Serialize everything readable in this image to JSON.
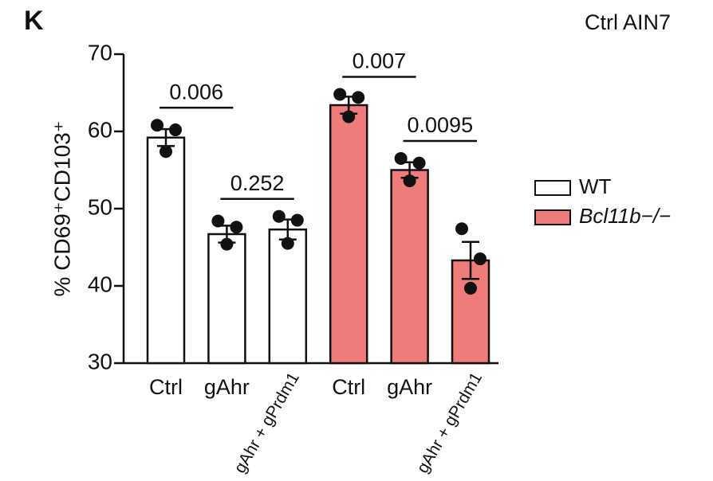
{
  "chart_data": {
    "type": "bar",
    "panel_label": "K",
    "corner_text": "Ctrl  AIN7",
    "y_label": "% CD69⁺CD103⁺",
    "categories": [
      "Ctrl",
      "gAhr",
      "gAhr + gPrdm1"
    ],
    "ylim": [
      30,
      70
    ],
    "yticks": [
      30,
      40,
      50,
      60,
      70
    ],
    "legend": "right",
    "series": [
      {
        "name": "WT",
        "color": "#ffffff",
        "values": [
          59.2,
          46.7,
          47.3
        ],
        "errors": [
          1.1,
          1.1,
          1.3
        ],
        "points": [
          [
            60.8,
            60.2,
            57.4
          ],
          [
            48.4,
            47.6,
            45.4
          ],
          [
            49.0,
            48.5,
            45.5
          ]
        ],
        "comparisons": [
          "0.006",
          "0.252"
        ]
      },
      {
        "name": "Bcl11b−/−",
        "color": "#f07b7b",
        "values": [
          63.4,
          55.0,
          43.3
        ],
        "errors": [
          1.1,
          1.0,
          2.4
        ],
        "points": [
          [
            64.8,
            64.4,
            61.9
          ],
          [
            56.5,
            55.9,
            53.6
          ],
          [
            47.4,
            43.5,
            39.7
          ]
        ],
        "comparisons": [
          "0.007",
          "0.0095"
        ]
      }
    ]
  }
}
